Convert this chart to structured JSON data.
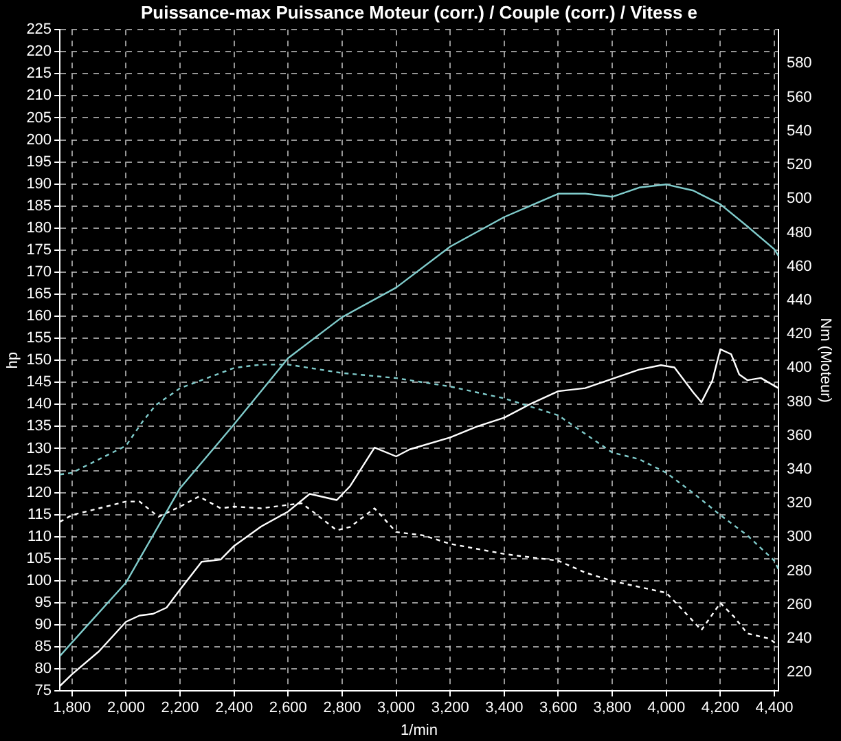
{
  "chart_data": {
    "type": "line",
    "title": "Puissance-max Puissance Moteur (corr.) / Couple (corr.) / Vitess e",
    "xlabel": "1/min",
    "ylabel": "hp",
    "y2label": "Nm (Moteur)",
    "xlim": [
      1755,
      4415
    ],
    "xticks": [
      {
        "value": 1800,
        "label": "1,800"
      },
      {
        "value": 2000,
        "label": "2,000"
      },
      {
        "value": 2200,
        "label": "2,200"
      },
      {
        "value": 2400,
        "label": "2,400"
      },
      {
        "value": 2600,
        "label": "2,600"
      },
      {
        "value": 2800,
        "label": "2,800"
      },
      {
        "value": 3000,
        "label": "3,000"
      },
      {
        "value": 3200,
        "label": "3,200"
      },
      {
        "value": 3400,
        "label": "3,400"
      },
      {
        "value": 3600,
        "label": "3,600"
      },
      {
        "value": 3800,
        "label": "3,800"
      },
      {
        "value": 4000,
        "label": "4,000"
      },
      {
        "value": 4200,
        "label": "4,200"
      },
      {
        "value": 4400,
        "label": "4,400"
      }
    ],
    "ylim": [
      75,
      225
    ],
    "yticks": [
      75,
      80,
      85,
      90,
      95,
      100,
      105,
      110,
      115,
      120,
      125,
      130,
      135,
      140,
      145,
      150,
      155,
      160,
      165,
      170,
      175,
      180,
      185,
      190,
      195,
      200,
      205,
      210,
      215,
      220,
      225
    ],
    "y2lim": [
      209,
      600
    ],
    "y2ticks": [
      220,
      240,
      260,
      280,
      300,
      320,
      340,
      360,
      380,
      400,
      420,
      440,
      460,
      480,
      500,
      520,
      540,
      560,
      580
    ],
    "grid": true,
    "legend": false,
    "marker": "none",
    "series": [
      {
        "color": "#80cccc",
        "line_style": "solid",
        "x": [
          1755,
          1800,
          2000,
          2200,
          2400,
          2600,
          2800,
          3000,
          3200,
          3400,
          3600,
          3700,
          3800,
          3900,
          4000,
          4100,
          4200,
          4300,
          4400,
          4415
        ],
        "values": [
          82.9,
          86,
          99.6,
          121,
          135.5,
          150.5,
          159.8,
          166.5,
          175.8,
          182.5,
          187.8,
          187.8,
          187.1,
          189.2,
          189.9,
          188.5,
          185.4,
          180.4,
          175.2,
          173.7
        ]
      },
      {
        "color": "#80cccc",
        "line_style": "dashed",
        "axis": "y2",
        "x": [
          1755,
          1800,
          1900,
          2000,
          2060,
          2110,
          2200,
          2300,
          2400,
          2500,
          2600,
          2800,
          3000,
          3200,
          3400,
          3600,
          3800,
          3900,
          4000,
          4100,
          4200,
          4300,
          4400,
          4415
        ],
        "values": [
          337,
          338,
          346,
          354,
          368,
          378,
          388,
          394,
          400,
          402,
          402,
          397,
          394,
          389,
          382,
          372,
          350,
          346,
          338,
          326,
          313,
          301,
          286,
          281
        ]
      },
      {
        "color": "#ffffff",
        "line_style": "solid",
        "x": [
          1755,
          1800,
          1900,
          2000,
          2050,
          2100,
          2150,
          2200,
          2280,
          2350,
          2400,
          2500,
          2600,
          2680,
          2780,
          2830,
          2920,
          3000,
          3050,
          3200,
          3300,
          3400,
          3500,
          3600,
          3700,
          3800,
          3900,
          3980,
          4030,
          4100,
          4130,
          4170,
          4200,
          4240,
          4270,
          4300,
          4350,
          4415
        ],
        "values": [
          76.1,
          78.8,
          84,
          90.7,
          92.1,
          92.5,
          93.9,
          98,
          104.3,
          104.8,
          107.9,
          112.3,
          115.7,
          119.7,
          118.3,
          121.5,
          130.2,
          128.2,
          129.8,
          132.5,
          135,
          137,
          140.2,
          143,
          143.7,
          145.8,
          147.9,
          148.9,
          148.4,
          142.7,
          140.5,
          145.3,
          152.5,
          151.4,
          146.8,
          145.5,
          146,
          143.7
        ]
      },
      {
        "color": "#ffffff",
        "line_style": "dashed",
        "axis": "y2",
        "x": [
          1755,
          1800,
          1900,
          2000,
          2050,
          2120,
          2200,
          2270,
          2350,
          2400,
          2500,
          2650,
          2700,
          2780,
          2830,
          2920,
          3000,
          3100,
          3200,
          3400,
          3600,
          3700,
          3800,
          4000,
          4060,
          4130,
          4200,
          4250,
          4300,
          4380,
          4415
        ],
        "values": [
          309,
          313,
          317,
          321,
          321,
          312,
          318,
          324,
          317,
          318,
          317,
          320,
          314,
          304,
          306,
          317,
          303,
          301,
          296,
          290,
          286,
          279,
          274,
          267,
          257,
          245,
          261,
          253,
          243,
          240,
          236
        ]
      }
    ]
  }
}
